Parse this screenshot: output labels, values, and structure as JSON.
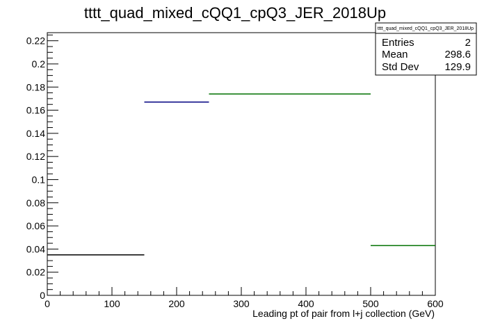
{
  "chart_data": {
    "type": "bar",
    "style": "step-histogram",
    "title": "tttt_quad_mixed_cQQ1_cpQ3_JER_2018Up",
    "xlabel": "Leading pt of pair from l+j collection (GeV)",
    "ylabel": "",
    "xlim": [
      0,
      600
    ],
    "ylim": [
      0,
      0.227
    ],
    "x_ticks": [
      0,
      100,
      200,
      300,
      400,
      500,
      600
    ],
    "y_ticks": [
      0,
      0.02,
      0.04,
      0.06,
      0.08,
      0.1,
      0.12,
      0.14,
      0.16,
      0.18,
      0.2,
      0.22
    ],
    "bins": [
      {
        "x_low": 0,
        "x_high": 150,
        "value": 0.035,
        "color": "#000000"
      },
      {
        "x_low": 150,
        "x_high": 250,
        "value": 0.167,
        "color": "#000080"
      },
      {
        "x_low": 250,
        "x_high": 500,
        "value": 0.174,
        "color": "#007000"
      },
      {
        "x_low": 500,
        "x_high": 600,
        "value": 0.043,
        "color": "#007000"
      }
    ],
    "grid": false,
    "stats_box": {
      "name": "tttt_quad_mixed_cQQ1_cpQ3_JER_2018Up",
      "rows": [
        {
          "label": "Entries",
          "value": "2"
        },
        {
          "label": "Mean",
          "value": "298.6"
        },
        {
          "label": "Std Dev",
          "value": "129.9"
        }
      ]
    }
  }
}
